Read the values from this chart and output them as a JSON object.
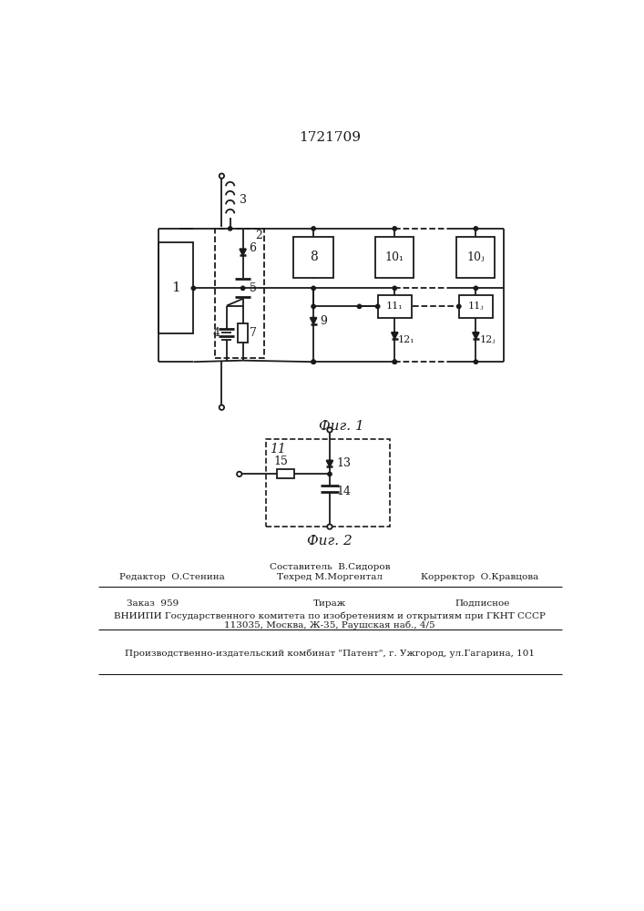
{
  "title": "1721709",
  "fig1_caption": "Фиг. 1",
  "fig2_caption": "Фиг. 2",
  "line_color": "#1a1a1a",
  "footer_row1_left": "Редактор  О.Стенина",
  "footer_row1_center_top": "Составитель  В.Сидоров",
  "footer_row1_center_bot": "Техред М.Моргентал",
  "footer_row1_right": "Корректор  О.Кравцова",
  "footer_row2_left": "Заказ  959",
  "footer_row2_center": "Тираж",
  "footer_row2_right": "Подписное",
  "footer_row3": "ВНИИПИ Государственного комитета по изобретениям и открытиям при ГКНТ СССР",
  "footer_row4": "113035, Москва, Ж-35, Раушская наб., 4/5",
  "footer_row5": "Производственно-издательский комбинат \"Патент\", г. Ужгород, ул.Гагарина, 101"
}
